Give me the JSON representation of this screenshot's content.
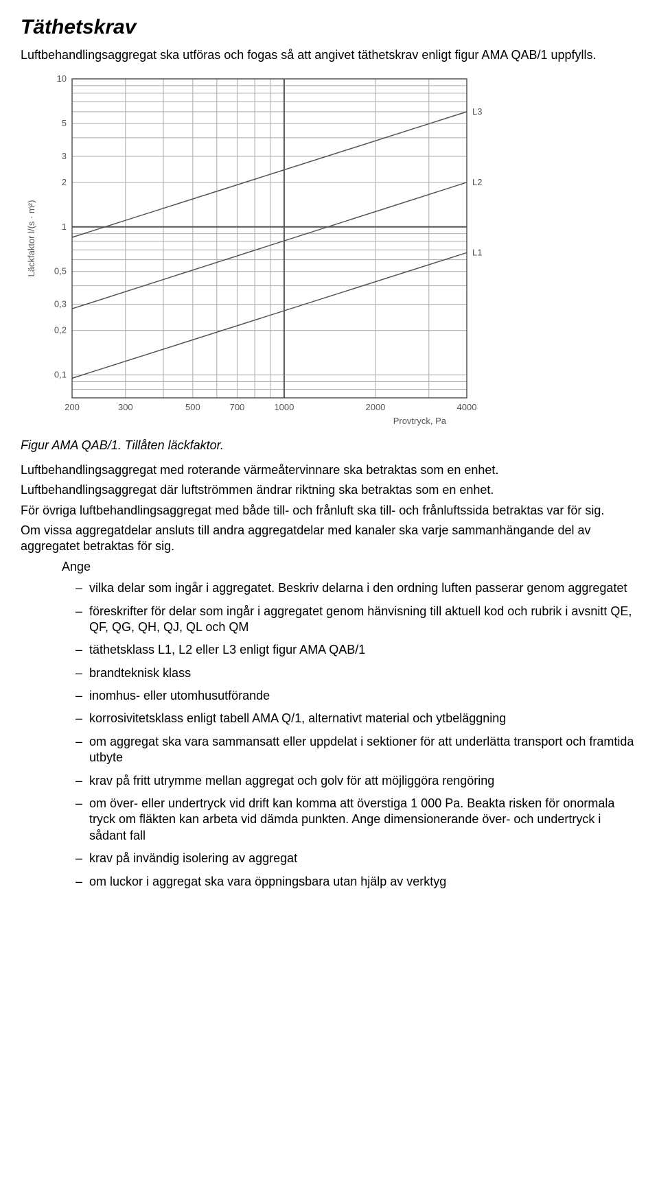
{
  "title": "Täthetskrav",
  "intro": "Luftbehandlingsaggregat ska utföras och fogas så att angivet täthetskrav enligt figur AMA QAB/1 uppfylls.",
  "chart": {
    "type": "line",
    "y_axis_label": "Läckfaktor l/(s · m²)",
    "x_axis_label": "Provtryck, Pa",
    "xlim": [
      200,
      4000
    ],
    "ylim": [
      0.07,
      10
    ],
    "scale": "log-log",
    "x_ticks": [
      200,
      300,
      500,
      700,
      1000,
      2000,
      4000
    ],
    "x_tick_labels": [
      "200",
      "300",
      "500",
      "700",
      "1000",
      "2000",
      "4000"
    ],
    "y_ticks": [
      0.1,
      0.2,
      0.3,
      0.5,
      1,
      2,
      3,
      5,
      10
    ],
    "y_tick_labels": [
      "0,1",
      "0,2",
      "0,3",
      "0,5",
      "1",
      "2",
      "3",
      "5",
      "10"
    ],
    "x_grid_extra": [
      400,
      600,
      800,
      900,
      3000
    ],
    "y_grid_extra": [
      0.07,
      0.08,
      0.09,
      0.4,
      0.6,
      0.7,
      0.8,
      0.9,
      4,
      6,
      7,
      8,
      9
    ],
    "x_bold": 1000,
    "y_bold": 1,
    "line_color": "#545454",
    "grid_color": "#a8a9a9",
    "grid_width": 1,
    "axis_color": "#545454",
    "background": "#ffffff",
    "series": [
      {
        "label": "L1",
        "x": [
          200,
          4000
        ],
        "y": [
          0.095,
          0.67
        ]
      },
      {
        "label": "L2",
        "x": [
          200,
          4000
        ],
        "y": [
          0.28,
          2.0
        ]
      },
      {
        "label": "L3",
        "x": [
          200,
          4000
        ],
        "y": [
          0.85,
          6.0
        ]
      }
    ],
    "label_fontsize": 13,
    "tick_fontsize": 13,
    "line_width": 1.5
  },
  "caption": "Figur AMA QAB/1. Tillåten läckfaktor.",
  "paragraphs": [
    "Luftbehandlingsaggregat med roterande värmeåtervinnare ska betraktas som en enhet.",
    "Luftbehandlingsaggregat där luftströmmen ändrar riktning ska betraktas som en enhet.",
    "För övriga luftbehandlingsaggregat med både till- och frånluft ska till- och frånluftssida betraktas var för sig.",
    "Om vissa aggregatdelar ansluts till andra aggregatdelar med kanaler ska varje sammanhängande del av aggregatet betraktas för sig."
  ],
  "ange_label": "Ange",
  "ange_items": [
    "vilka delar som ingår i aggregatet. Beskriv delarna i den ordning luften passerar genom aggregatet",
    "föreskrifter för delar som ingår i aggregatet genom hänvisning till aktuell kod och rubrik i avsnitt QE, QF, QG, QH, QJ, QL och QM",
    "täthetsklass L1, L2 eller L3 enligt figur AMA QAB/1",
    "brandteknisk klass",
    "inomhus- eller utomhusutförande",
    "korrosivitetsklass enligt tabell AMA Q/1, alternativt material och ytbeläggning",
    "om aggregat ska vara sammansatt eller uppdelat i sektioner för att underlätta transport och framtida utbyte",
    "krav på fritt utrymme mellan aggregat och golv för att möjliggöra rengöring",
    "om över- eller undertryck vid drift kan komma att överstiga 1 000 Pa. Beakta risken för onormala tryck om fläkten kan arbeta vid dämda punkten. Ange dimensionerande över- och undertryck i sådant fall",
    "krav på invändig isolering av aggregat",
    "om luckor i aggregat ska vara öppningsbara utan hjälp av verktyg"
  ]
}
